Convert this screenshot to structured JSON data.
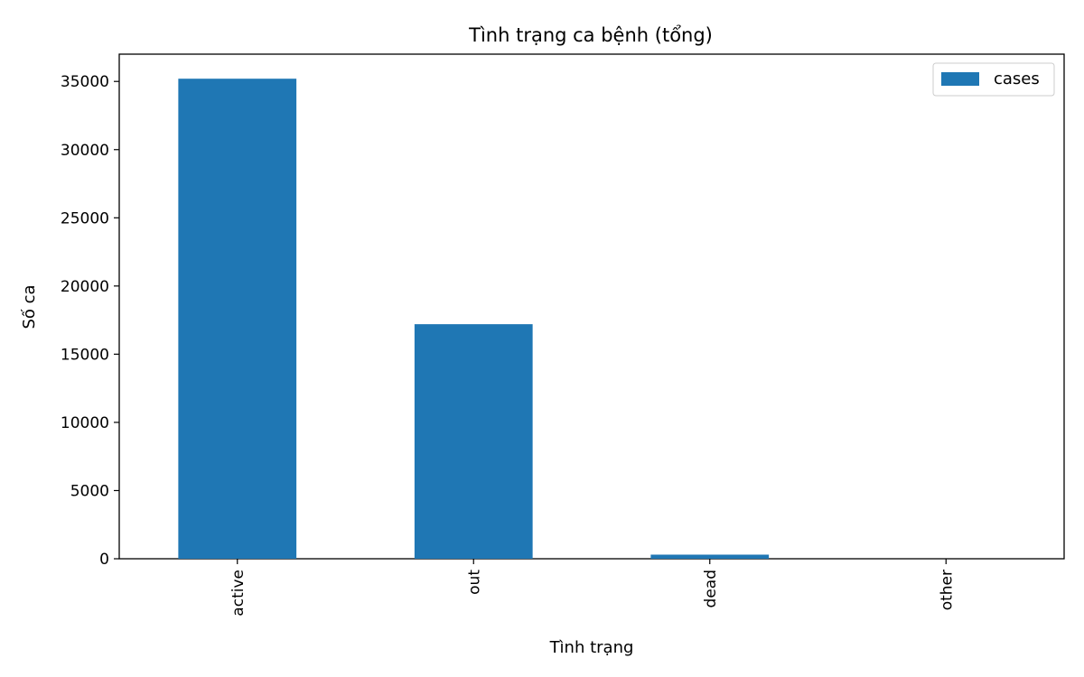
{
  "chart_data": {
    "type": "bar",
    "title": "Tình trạng ca bệnh (tổng)",
    "xlabel": "Tình trạng",
    "ylabel": "Số ca",
    "categories": [
      "active",
      "out",
      "dead",
      "other"
    ],
    "series": [
      {
        "name": "cases",
        "values": [
          35200,
          17200,
          300,
          0
        ],
        "color": "#1f77b4"
      }
    ],
    "ylim": [
      0,
      37000
    ],
    "yticks": [
      0,
      5000,
      10000,
      15000,
      20000,
      25000,
      30000,
      35000
    ],
    "grid": false,
    "legend": "top-right"
  }
}
